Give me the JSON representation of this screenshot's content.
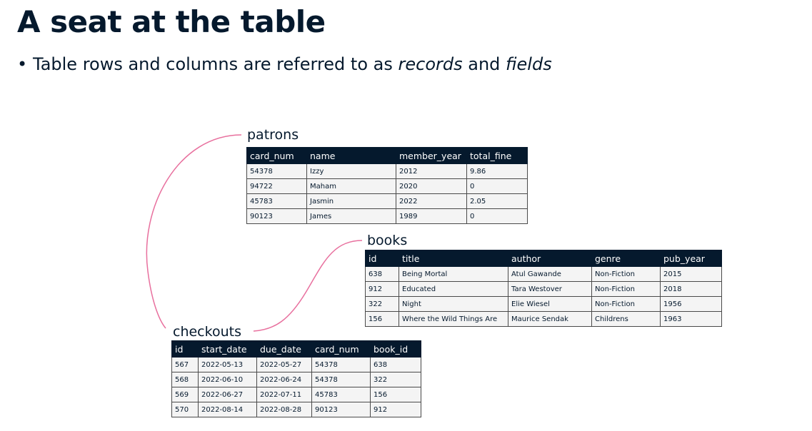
{
  "title": "A seat at the table",
  "bullet": {
    "prefix": "Table rows and columns are referred to as ",
    "term1": "records",
    "middle": " and ",
    "term2": "fields"
  },
  "colors": {
    "dark": "#05192d",
    "curve": "#e8709e",
    "cell": "#f4f4f4"
  },
  "tables": {
    "patrons": {
      "name": "patrons",
      "columns": [
        "card_num",
        "name",
        "member_year",
        "total_fine"
      ],
      "rows": [
        [
          "54378",
          "Izzy",
          "2012",
          "9.86"
        ],
        [
          "94722",
          "Maham",
          "2020",
          "0"
        ],
        [
          "45783",
          "Jasmin",
          "2022",
          "2.05"
        ],
        [
          "90123",
          "James",
          "1989",
          "0"
        ]
      ]
    },
    "books": {
      "name": "books",
      "columns": [
        "id",
        "title",
        "author",
        "genre",
        "pub_year"
      ],
      "rows": [
        [
          "638",
          "Being Mortal",
          "Atul Gawande",
          "Non-Fiction",
          "2015"
        ],
        [
          "912",
          "Educated",
          "Tara Westover",
          "Non-Fiction",
          "2018"
        ],
        [
          "322",
          "Night",
          "Elie Wiesel",
          "Non-Fiction",
          "1956"
        ],
        [
          "156",
          "Where the Wild Things Are",
          "Maurice Sendak",
          "Childrens",
          "1963"
        ]
      ]
    },
    "checkouts": {
      "name": "checkouts",
      "columns": [
        "id",
        "start_date",
        "due_date",
        "card_num",
        "book_id"
      ],
      "rows": [
        [
          "567",
          "2022-05-13",
          "2022-05-27",
          "54378",
          "638"
        ],
        [
          "568",
          "2022-06-10",
          "2022-06-24",
          "54378",
          "322"
        ],
        [
          "569",
          "2022-06-27",
          "2022-07-11",
          "45783",
          "156"
        ],
        [
          "570",
          "2022-08-14",
          "2022-08-28",
          "90123",
          "912"
        ]
      ]
    }
  }
}
